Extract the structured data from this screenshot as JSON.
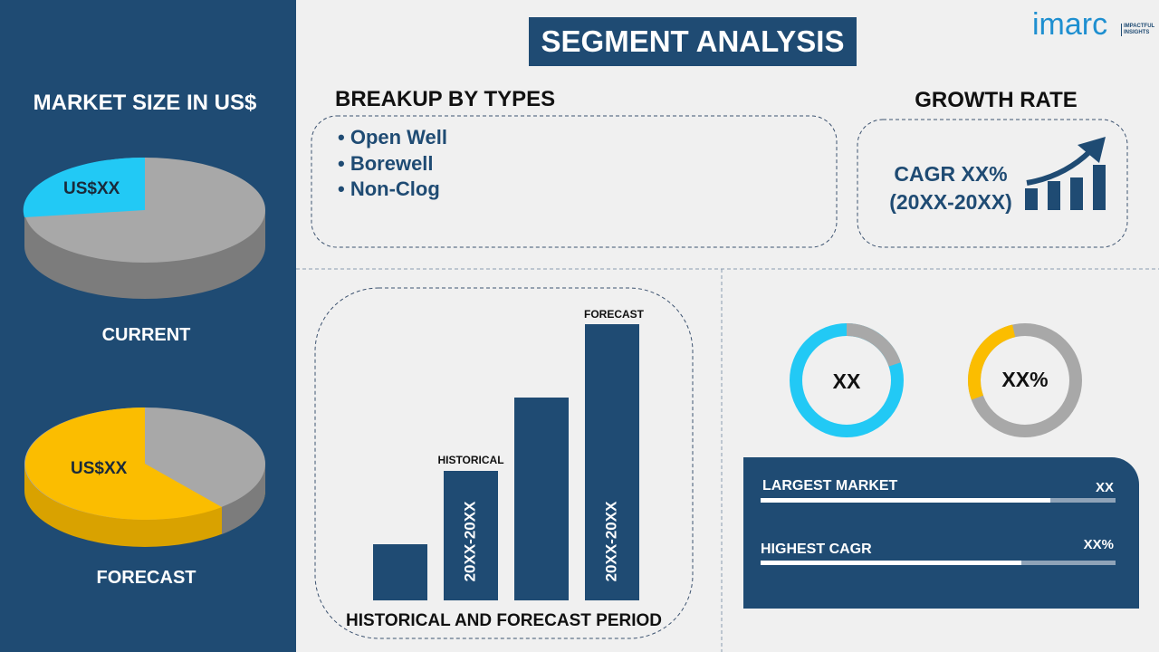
{
  "logo": {
    "name": "imarc",
    "tagline": [
      "IMPACTFUL",
      "INSIGHTS"
    ]
  },
  "title": "SEGMENT ANALYSIS",
  "market_size": {
    "heading": "MARKET SIZE IN US$",
    "current": {
      "value_label": "US$XX",
      "label": "CURRENT"
    },
    "forecast": {
      "value_label": "US$XX",
      "label": "FORECAST"
    }
  },
  "breakup": {
    "heading": "BREAKUP BY TYPES",
    "items": [
      "Open Well",
      "Borewell",
      "Non-Clog"
    ]
  },
  "growth": {
    "heading": "GROWTH RATE",
    "cagr": "CAGR XX%",
    "period": "(20XX-20XX)"
  },
  "period_chart": {
    "historical_label": "HISTORICAL",
    "forecast_label": "FORECAST",
    "historical_range": "20XX-20XX",
    "forecast_range": "20XX-20XX",
    "caption": "HISTORICAL AND FORECAST PERIOD"
  },
  "donuts": [
    "XX",
    "XX%"
  ],
  "metrics": [
    {
      "label": "LARGEST MARKET",
      "value": "XX"
    },
    {
      "label": "HIGHEST CAGR",
      "value": "XX%"
    }
  ]
}
